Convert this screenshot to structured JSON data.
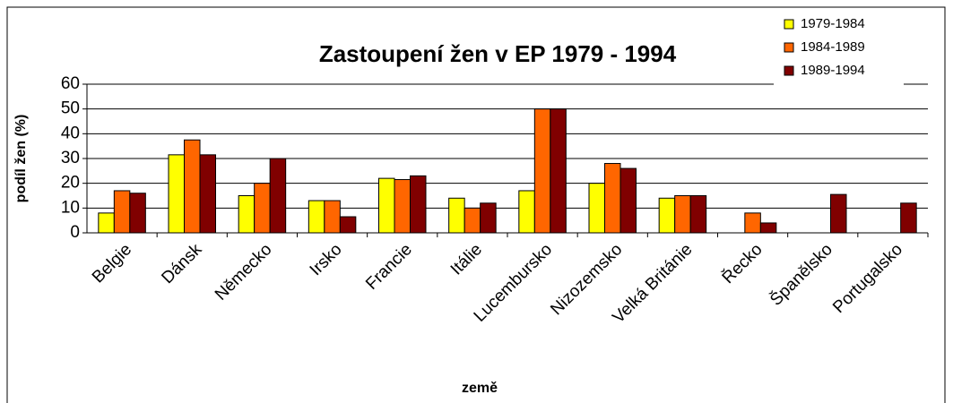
{
  "chart_data": {
    "type": "bar",
    "title": "Zastoupení žen v EP 1979 - 1994",
    "x_label": "země",
    "y_label": "podíl žen (%)",
    "categories": [
      "Belgie",
      "Dánsk",
      "Německo",
      "Irsko",
      "Francie",
      "Itálie",
      "Lucembursko",
      "Nizozemsko",
      "Velká Británie",
      "Řecko",
      "Španělsko",
      "Portugalsko"
    ],
    "series": [
      {
        "name": "1979-1984",
        "color": "#ffff00",
        "values": [
          8,
          31.5,
          15,
          13,
          22,
          14,
          17,
          20,
          14,
          null,
          null,
          null
        ]
      },
      {
        "name": "1984-1989",
        "color": "#ff6600",
        "values": [
          17,
          37.5,
          20,
          13,
          21.5,
          10,
          50,
          28,
          15,
          8,
          null,
          null
        ]
      },
      {
        "name": "1989-1994",
        "color": "#800000",
        "values": [
          16,
          31.5,
          30,
          6.5,
          23,
          12,
          50,
          26,
          15,
          4,
          15.5,
          12
        ]
      }
    ],
    "ylim": [
      0,
      60
    ],
    "yticks": [
      0,
      10,
      20,
      30,
      40,
      50,
      60
    ],
    "grid": true,
    "legend": "top-right"
  }
}
